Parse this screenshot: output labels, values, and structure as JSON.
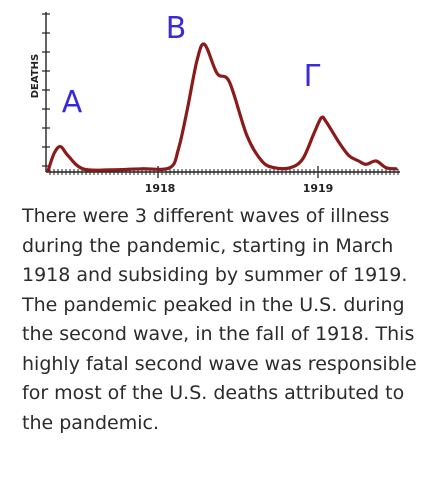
{
  "chart_data": {
    "type": "line",
    "ylabel": "DEATHS",
    "x_tick_labels": [
      "1918",
      "1919"
    ],
    "wave_labels": [
      "A",
      "B",
      "Γ"
    ],
    "line_color": "#8b1a1a",
    "label_color": "#3a2bd6",
    "axis_color": "#222222",
    "grid": false,
    "series": [
      {
        "values": [
          [
            0.0,
            0
          ],
          [
            0.05,
            16
          ],
          [
            0.1,
            22
          ],
          [
            0.16,
            14
          ],
          [
            0.28,
            2
          ],
          [
            0.5,
            1
          ],
          [
            0.75,
            2
          ],
          [
            0.98,
            3
          ],
          [
            1.05,
            20
          ],
          [
            1.12,
            55
          ],
          [
            1.2,
            100
          ],
          [
            1.26,
            114
          ],
          [
            1.36,
            88
          ],
          [
            1.46,
            80
          ],
          [
            1.6,
            32
          ],
          [
            1.72,
            9
          ],
          [
            1.82,
            3
          ],
          [
            1.95,
            3
          ],
          [
            2.05,
            11
          ],
          [
            2.14,
            34
          ],
          [
            2.2,
            48
          ],
          [
            2.24,
            44
          ],
          [
            2.34,
            26
          ],
          [
            2.42,
            14
          ],
          [
            2.5,
            9
          ],
          [
            2.56,
            6
          ],
          [
            2.64,
            9
          ],
          [
            2.72,
            3
          ],
          [
            2.8,
            2
          ]
        ]
      }
    ]
  },
  "caption": "There were 3 different waves of illness during the pandemic, starting in March 1918 and subsiding by summer of 1919. The pandemic peaked in the U.S. during the second wave, in the fall of 1918. This highly fatal second wave was responsible for most of the U.S. deaths attributed to the pandemic."
}
